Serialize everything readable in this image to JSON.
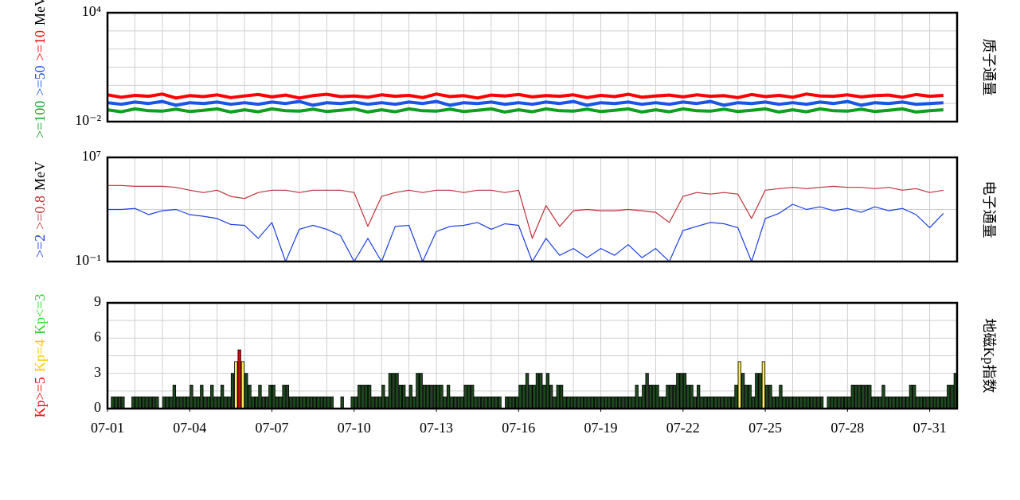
{
  "chart_data": [
    {
      "type": "line",
      "log_y": true,
      "ylabel": "质子通量",
      "y_unit": "MeV",
      "xlim": [
        0,
        31
      ],
      "ylim": [
        0.01,
        10000
      ],
      "yticks": [
        {
          "value": 10000,
          "label": "10⁴"
        },
        {
          "value": 0.01,
          "label": "10⁻²"
        }
      ],
      "minor_yticks": [
        0.1,
        1,
        10,
        100,
        1000
      ],
      "minor_xticks": [
        0,
        1,
        2,
        3,
        4,
        5,
        6,
        7,
        8,
        9,
        10,
        11,
        12,
        13,
        14,
        15,
        16,
        17,
        18,
        19,
        20,
        21,
        22,
        23,
        24,
        25,
        26,
        27,
        28,
        29,
        30,
        31
      ],
      "x": [
        0,
        0.5,
        1,
        1.5,
        2,
        2.5,
        3,
        3.5,
        4,
        4.5,
        5,
        5.5,
        6,
        6.5,
        7,
        7.5,
        8,
        8.5,
        9,
        9.5,
        10,
        10.5,
        11,
        11.5,
        12,
        12.5,
        13,
        13.5,
        14,
        14.5,
        15,
        15.5,
        16,
        16.5,
        17,
        17.5,
        18,
        18.5,
        19,
        19.5,
        20,
        20.5,
        21,
        21.5,
        22,
        22.5,
        23,
        23.5,
        24,
        24.5,
        25,
        25.5,
        26,
        26.5,
        27,
        27.5,
        28,
        28.5,
        29,
        29.5,
        30,
        30.5
      ],
      "series": [
        {
          "name": ">=100",
          "color": "#10a020",
          "values": [
            0.045,
            0.035,
            0.05,
            0.04,
            0.038,
            0.048,
            0.036,
            0.042,
            0.05,
            0.034,
            0.045,
            0.035,
            0.05,
            0.04,
            0.038,
            0.048,
            0.036,
            0.042,
            0.05,
            0.034,
            0.045,
            0.035,
            0.05,
            0.04,
            0.038,
            0.048,
            0.036,
            0.042,
            0.05,
            0.034,
            0.045,
            0.035,
            0.05,
            0.04,
            0.038,
            0.048,
            0.036,
            0.042,
            0.05,
            0.034,
            0.045,
            0.035,
            0.05,
            0.04,
            0.038,
            0.048,
            0.036,
            0.042,
            0.05,
            0.034,
            0.045,
            0.035,
            0.05,
            0.04,
            0.038,
            0.048,
            0.036,
            0.042,
            0.05,
            0.034,
            0.04,
            0.045
          ]
        },
        {
          "name": ">=50",
          "color": "#1a55e8",
          "values": [
            0.11,
            0.09,
            0.12,
            0.1,
            0.13,
            0.08,
            0.11,
            0.1,
            0.12,
            0.09,
            0.11,
            0.09,
            0.12,
            0.1,
            0.13,
            0.08,
            0.11,
            0.1,
            0.12,
            0.09,
            0.11,
            0.09,
            0.12,
            0.1,
            0.13,
            0.08,
            0.11,
            0.1,
            0.12,
            0.09,
            0.11,
            0.09,
            0.12,
            0.1,
            0.13,
            0.08,
            0.11,
            0.1,
            0.12,
            0.09,
            0.11,
            0.09,
            0.12,
            0.1,
            0.13,
            0.08,
            0.11,
            0.1,
            0.12,
            0.09,
            0.11,
            0.09,
            0.12,
            0.1,
            0.13,
            0.08,
            0.11,
            0.1,
            0.12,
            0.09,
            0.1,
            0.11
          ]
        },
        {
          "name": ">=10",
          "color": "#ff0000",
          "values": [
            0.3,
            0.22,
            0.28,
            0.25,
            0.33,
            0.2,
            0.27,
            0.24,
            0.3,
            0.21,
            0.26,
            0.31,
            0.23,
            0.29,
            0.2,
            0.27,
            0.32,
            0.24,
            0.26,
            0.22,
            0.3,
            0.25,
            0.28,
            0.21,
            0.33,
            0.24,
            0.27,
            0.2,
            0.29,
            0.26,
            0.31,
            0.23,
            0.27,
            0.25,
            0.3,
            0.21,
            0.28,
            0.24,
            0.32,
            0.22,
            0.26,
            0.29,
            0.23,
            0.3,
            0.25,
            0.27,
            0.21,
            0.31,
            0.24,
            0.28,
            0.22,
            0.33,
            0.26,
            0.25,
            0.3,
            0.23,
            0.27,
            0.29,
            0.22,
            0.31,
            0.25,
            0.28
          ]
        }
      ]
    },
    {
      "type": "line",
      "log_y": true,
      "ylabel": "电子通量",
      "y_unit": "MeV",
      "xlim": [
        0,
        31
      ],
      "ylim": [
        0.1,
        10000000
      ],
      "yticks": [
        {
          "value": 10000000,
          "label": "10⁷"
        },
        {
          "value": 0.1,
          "label": "10⁻¹"
        }
      ],
      "minor_yticks": [
        1000
      ],
      "minor_xticks": [
        0,
        1,
        2,
        3,
        4,
        5,
        6,
        7,
        8,
        9,
        10,
        11,
        12,
        13,
        14,
        15,
        16,
        17,
        18,
        19,
        20,
        21,
        22,
        23,
        24,
        25,
        26,
        27,
        28,
        29,
        30,
        31
      ],
      "x": [
        0,
        0.5,
        1,
        1.5,
        2,
        2.5,
        3,
        3.5,
        4,
        4.5,
        5,
        5.5,
        6,
        6.5,
        7,
        7.5,
        8,
        8.5,
        9,
        9.5,
        10,
        10.5,
        11,
        11.5,
        12,
        12.5,
        13,
        13.5,
        14,
        14.5,
        15,
        15.5,
        16,
        16.5,
        17,
        17.5,
        18,
        18.5,
        19,
        19.5,
        20,
        20.5,
        21,
        21.5,
        22,
        22.5,
        23,
        23.5,
        24,
        24.5,
        25,
        25.5,
        26,
        26.5,
        27,
        27.5,
        28,
        28.5,
        29,
        29.5,
        30,
        30.5
      ],
      "series": [
        {
          "name": ">=2",
          "color": "#1a3fe0",
          "values": [
            1000,
            1000,
            1200,
            400,
            800,
            1000,
            400,
            300,
            200,
            70,
            60,
            6,
            100,
            0.1,
            30,
            60,
            30,
            10,
            0.1,
            6,
            0.1,
            50,
            60,
            0.1,
            20,
            50,
            60,
            100,
            30,
            80,
            60,
            0.1,
            6,
            0.3,
            1,
            0.2,
            1,
            0.3,
            2,
            0.2,
            1,
            0.1,
            24,
            50,
            100,
            80,
            40,
            0.1,
            200,
            500,
            2500,
            1000,
            1600,
            800,
            1200,
            600,
            1600,
            800,
            1200,
            400,
            40,
            500
          ]
        },
        {
          "name": ">=0.8",
          "color": "#c0303a",
          "values": [
            70000,
            70000,
            60000,
            60000,
            60000,
            50000,
            30000,
            20000,
            30000,
            10000,
            7000,
            20000,
            30000,
            30000,
            20000,
            30000,
            30000,
            30000,
            20000,
            50,
            10000,
            20000,
            30000,
            20000,
            30000,
            30000,
            20000,
            30000,
            30000,
            20000,
            30000,
            6,
            2000,
            50,
            800,
            1000,
            800,
            800,
            1000,
            800,
            600,
            100,
            10000,
            20000,
            15000,
            20000,
            15000,
            200,
            30000,
            40000,
            50000,
            40000,
            50000,
            60000,
            50000,
            50000,
            40000,
            50000,
            30000,
            40000,
            20000,
            30000
          ]
        }
      ]
    },
    {
      "type": "bar",
      "ylabel": "地磁Kp指数",
      "xlim": [
        0,
        31
      ],
      "ylim": [
        0,
        9
      ],
      "yticks": [
        0,
        3,
        6,
        9
      ],
      "minor_yticks": [
        1.5,
        4.5,
        7.5
      ],
      "minor_xticks": [
        0,
        1,
        2,
        3,
        4,
        5,
        6,
        7,
        8,
        9,
        10,
        11,
        12,
        13,
        14,
        15,
        16,
        17,
        18,
        19,
        20,
        21,
        22,
        23,
        24,
        25,
        26,
        27,
        28,
        29,
        30,
        31
      ],
      "xticks": [
        {
          "value": 0,
          "label": "07-01"
        },
        {
          "value": 3,
          "label": "07-04"
        },
        {
          "value": 6,
          "label": "07-07"
        },
        {
          "value": 9,
          "label": "07-10"
        },
        {
          "value": 12,
          "label": "07-13"
        },
        {
          "value": 15,
          "label": "07-16"
        },
        {
          "value": 18,
          "label": "07-19"
        },
        {
          "value": 21,
          "label": "07-22"
        },
        {
          "value": 24,
          "label": "07-25"
        },
        {
          "value": 27,
          "label": "07-28"
        },
        {
          "value": 30,
          "label": "07-31"
        }
      ],
      "levels": [
        {
          "name": "Kp>=5",
          "color": "#ff0000",
          "bar_color": "#e00000",
          "min": 5
        },
        {
          "name": "Kp=4",
          "color": "#ffc800",
          "bar_color": "#ffee55",
          "min": 4
        },
        {
          "name": "Kp<=3",
          "color": "#22dd22",
          "bar_color": "#1e4a1e",
          "min": 0
        }
      ],
      "x": [
        0,
        0.125,
        0.25,
        0.375,
        0.5,
        0.625,
        0.75,
        0.875,
        1,
        1.125,
        1.25,
        1.375,
        1.5,
        1.625,
        1.75,
        1.875,
        2,
        2.125,
        2.25,
        2.375,
        2.5,
        2.625,
        2.75,
        2.875,
        3,
        3.125,
        3.25,
        3.375,
        3.5,
        3.625,
        3.75,
        3.875,
        4,
        4.125,
        4.25,
        4.375,
        4.5,
        4.625,
        4.75,
        4.875,
        5,
        5.125,
        5.25,
        5.375,
        5.5,
        5.625,
        5.75,
        5.875,
        6,
        6.125,
        6.25,
        6.375,
        6.5,
        6.625,
        6.75,
        6.875,
        7,
        7.125,
        7.25,
        7.375,
        7.5,
        7.625,
        7.75,
        7.875,
        8,
        8.125,
        8.25,
        8.375,
        8.5,
        8.625,
        8.75,
        8.875,
        9,
        9.125,
        9.25,
        9.375,
        9.5,
        9.625,
        9.75,
        9.875,
        10,
        10.125,
        10.25,
        10.375,
        10.5,
        10.625,
        10.75,
        10.875,
        11,
        11.125,
        11.25,
        11.375,
        11.5,
        11.625,
        11.75,
        11.875,
        12,
        12.125,
        12.25,
        12.375,
        12.5,
        12.625,
        12.75,
        12.875,
        13,
        13.125,
        13.25,
        13.375,
        13.5,
        13.625,
        13.75,
        13.875,
        14,
        14.125,
        14.25,
        14.375,
        14.5,
        14.625,
        14.75,
        14.875,
        15,
        15.125,
        15.25,
        15.375,
        15.5,
        15.625,
        15.75,
        15.875,
        16,
        16.125,
        16.25,
        16.375,
        16.5,
        16.625,
        16.75,
        16.875,
        17,
        17.125,
        17.25,
        17.375,
        17.5,
        17.625,
        17.75,
        17.875,
        18,
        18.125,
        18.25,
        18.375,
        18.5,
        18.625,
        18.75,
        18.875,
        19,
        19.125,
        19.25,
        19.375,
        19.5,
        19.625,
        19.75,
        19.875,
        20,
        20.125,
        20.25,
        20.375,
        20.5,
        20.625,
        20.75,
        20.875,
        21,
        21.125,
        21.25,
        21.375,
        21.5,
        21.625,
        21.75,
        21.875,
        22,
        22.125,
        22.25,
        22.375,
        22.5,
        22.625,
        22.75,
        22.875,
        23,
        23.125,
        23.25,
        23.375,
        23.5,
        23.625,
        23.75,
        23.875,
        24,
        24.125,
        24.25,
        24.375,
        24.5,
        24.625,
        24.75,
        24.875,
        25,
        25.125,
        25.25,
        25.375,
        25.5,
        25.625,
        25.75,
        25.875,
        26,
        26.125,
        26.25,
        26.375,
        26.5,
        26.625,
        26.75,
        26.875,
        27,
        27.125,
        27.25,
        27.375,
        27.5,
        27.625,
        27.75,
        27.875,
        28,
        28.125,
        28.25,
        28.375,
        28.5,
        28.625,
        28.75,
        28.875,
        29,
        29.125,
        29.25,
        29.375,
        29.5,
        29.625,
        29.75,
        29.875,
        30,
        30.125,
        30.25,
        30.375,
        30.5,
        30.625,
        30.75,
        30.875
      ],
      "values": [
        0,
        1,
        1,
        1,
        1,
        0,
        0,
        1,
        1,
        1,
        1,
        1,
        1,
        1,
        1,
        0,
        1,
        1,
        1,
        2,
        1,
        1,
        1,
        1,
        2,
        1,
        1,
        2,
        1,
        1,
        2,
        1,
        1,
        2,
        1,
        1,
        3,
        4,
        5,
        4,
        3,
        2,
        1,
        1,
        2,
        1,
        1,
        2,
        2,
        1,
        1,
        2,
        2,
        1,
        1,
        1,
        1,
        1,
        1,
        1,
        1,
        1,
        1,
        1,
        1,
        1,
        0,
        0,
        1,
        0,
        0,
        1,
        1,
        2,
        2,
        2,
        2,
        1,
        1,
        1,
        2,
        1,
        3,
        3,
        3,
        2,
        2,
        1,
        2,
        1,
        3,
        3,
        2,
        2,
        2,
        2,
        2,
        2,
        1,
        2,
        1,
        1,
        1,
        1,
        2,
        2,
        2,
        1,
        1,
        1,
        1,
        1,
        1,
        1,
        1,
        0,
        1,
        1,
        1,
        1,
        2,
        2,
        3,
        2,
        2,
        3,
        3,
        2,
        3,
        2,
        1,
        2,
        2,
        1,
        1,
        1,
        1,
        1,
        1,
        1,
        1,
        1,
        1,
        1,
        1,
        1,
        1,
        1,
        1,
        1,
        1,
        1,
        1,
        1,
        2,
        1,
        2,
        3,
        2,
        2,
        2,
        1,
        1,
        2,
        2,
        2,
        3,
        3,
        3,
        2,
        2,
        1,
        2,
        1,
        1,
        1,
        1,
        1,
        1,
        1,
        1,
        1,
        1,
        2,
        4,
        3,
        2,
        2,
        1,
        3,
        3,
        4,
        2,
        2,
        1,
        1,
        2,
        1,
        1,
        1,
        1,
        1,
        1,
        1,
        1,
        1,
        1,
        1,
        1,
        0,
        1,
        1,
        1,
        1,
        1,
        1,
        1,
        2,
        2,
        2,
        2,
        2,
        2,
        1,
        1,
        1,
        2,
        1,
        1,
        1,
        1,
        1,
        1,
        1,
        2,
        2,
        1,
        1,
        1,
        1,
        1,
        1,
        1,
        1,
        1,
        2,
        2,
        3
      ]
    }
  ]
}
